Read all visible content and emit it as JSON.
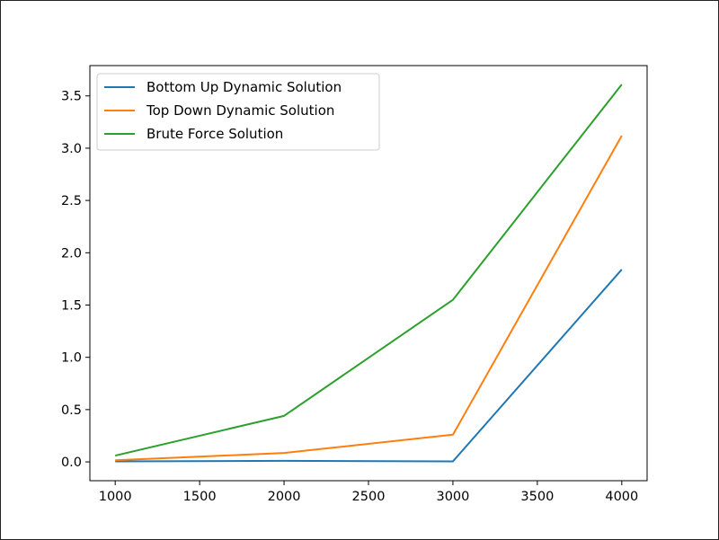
{
  "chart_data": {
    "type": "line",
    "title": "",
    "xlabel": "",
    "ylabel": "",
    "x": [
      1000,
      2000,
      3000,
      4000
    ],
    "xlim": [
      850,
      4150
    ],
    "ylim": [
      -0.18,
      3.79
    ],
    "xticks": [
      1000,
      1500,
      2000,
      2500,
      3000,
      3500,
      4000
    ],
    "xtick_labels": [
      "1000",
      "1500",
      "2000",
      "2500",
      "3000",
      "3500",
      "4000"
    ],
    "yticks": [
      0.0,
      0.5,
      1.0,
      1.5,
      2.0,
      2.5,
      3.0,
      3.5
    ],
    "ytick_labels": [
      "0.0",
      "0.5",
      "1.0",
      "1.5",
      "2.0",
      "2.5",
      "3.0",
      "3.5"
    ],
    "grid": false,
    "legend_position": "upper-left",
    "series": [
      {
        "name": "Bottom Up Dynamic Solution",
        "color": "#1f77b4",
        "values": [
          0.005,
          0.01,
          0.005,
          1.84
        ]
      },
      {
        "name": "Top Down Dynamic Solution",
        "color": "#ff7f0e",
        "values": [
          0.015,
          0.085,
          0.26,
          3.12
        ]
      },
      {
        "name": "Brute Force Solution",
        "color": "#2ca02c",
        "values": [
          0.06,
          0.44,
          1.55,
          3.61
        ]
      }
    ]
  }
}
